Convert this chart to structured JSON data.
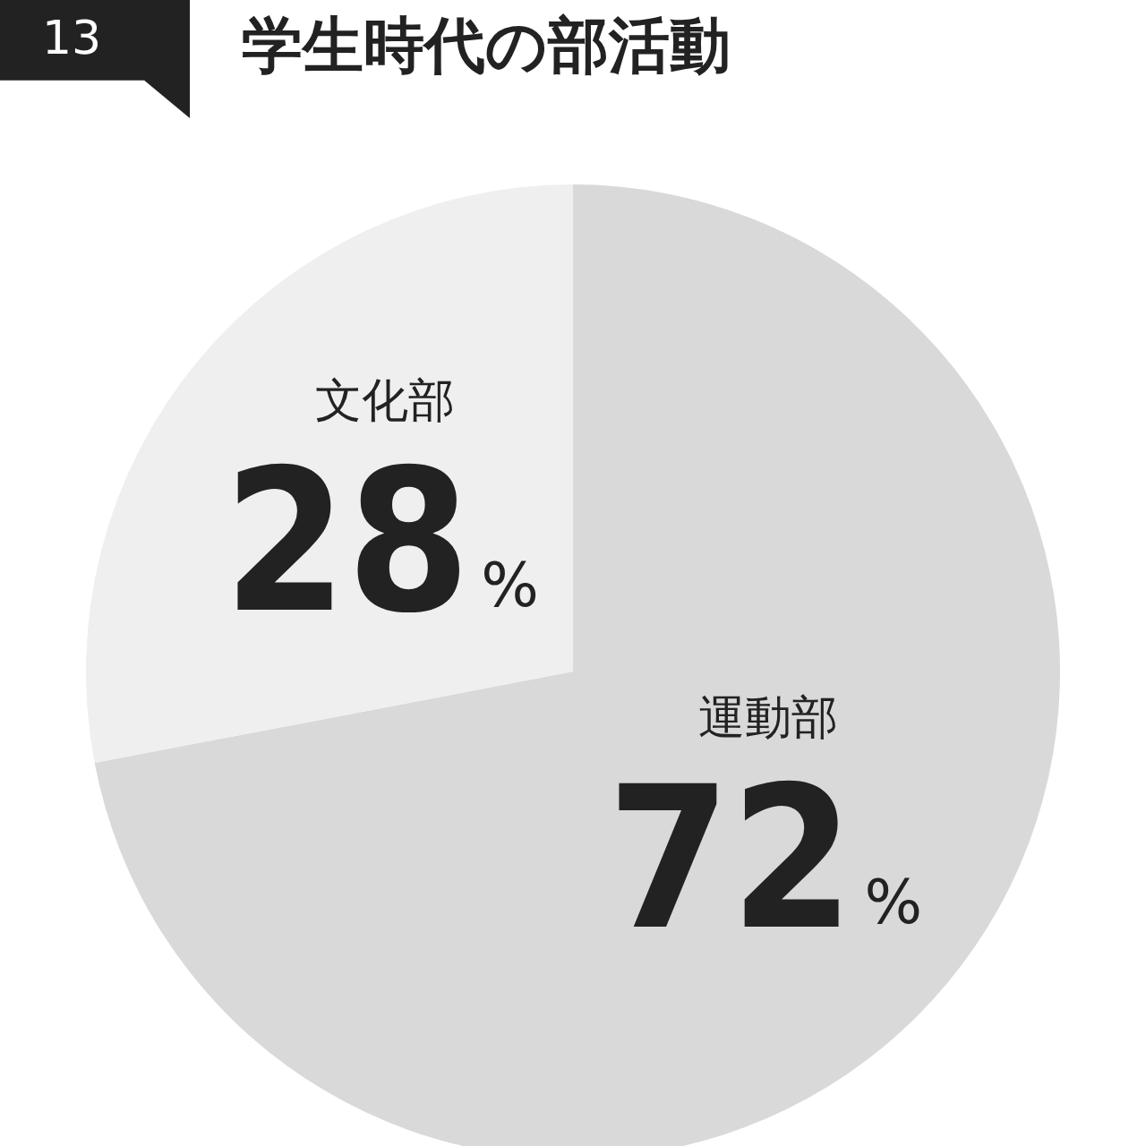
{
  "chart_data": {
    "type": "pie",
    "title": "学生時代の部活動",
    "annotations": [
      "13"
    ],
    "categories": [
      "運動部",
      "文化部"
    ],
    "values": [
      72,
      28
    ],
    "colors": [
      "#d9d9d9",
      "#efefef"
    ],
    "value_labels": [
      "72%",
      "28%"
    ],
    "legend": false
  }
}
